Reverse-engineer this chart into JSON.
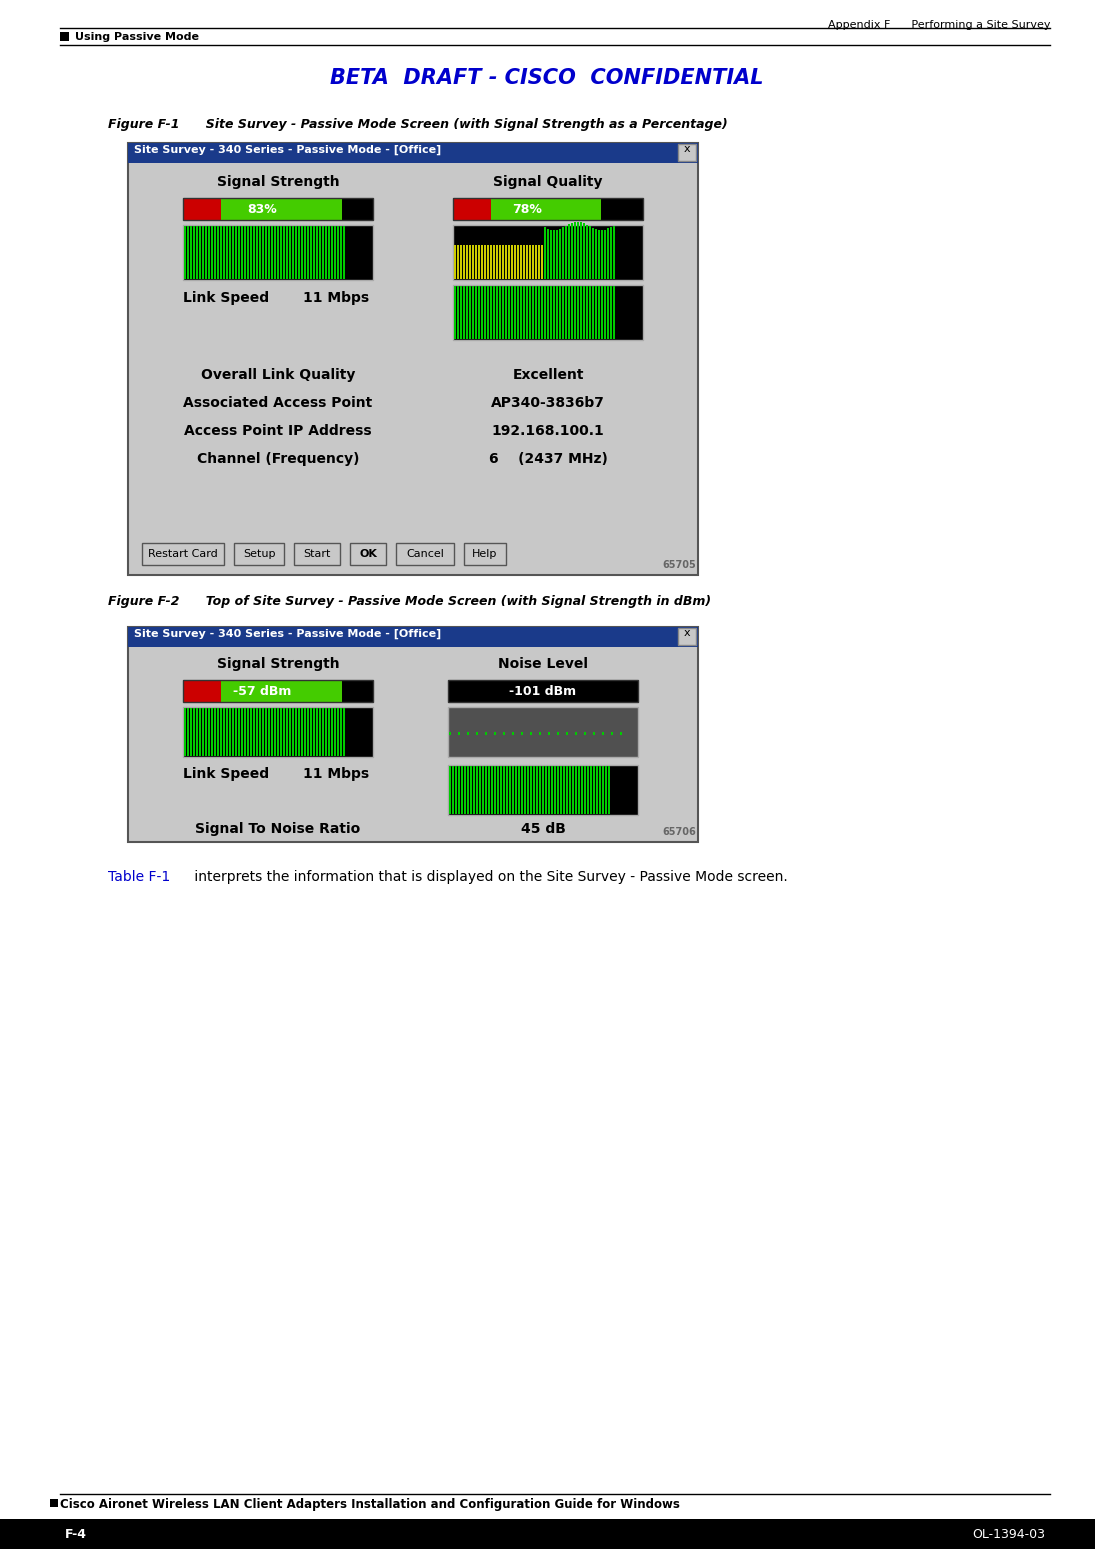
{
  "page_bg": "#ffffff",
  "header_right_text": "Appendix F      Performing a Site Survey",
  "header_left_text": "Using Passive Mode",
  "beta_draft_text": "BETA  DRAFT - CISCO  CONFIDENTIAL",
  "beta_draft_color": "#0000cc",
  "fig1_caption": "Figure F-1      Site Survey - Passive Mode Screen (with Signal Strength as a Percentage)",
  "fig2_caption": "Figure F-2      Top of Site Survey - Passive Mode Screen (with Signal Strength in dBm)",
  "table_f1_color": "#0000cc",
  "footer_left": "F-4",
  "footer_center": "Cisco Aironet Wireless LAN Client Adapters Installation and Configuration Guide for Windows",
  "footer_right": "OL-1394-03",
  "win1_title": "Site Survey - 340 Series - Passive Mode - [Office]",
  "win1_title_bg": "#1a3a8a",
  "win1_bg": "#c8c8c8",
  "win1_sig_strength_label": "Signal Strength",
  "win1_sig_quality_label": "Signal Quality",
  "win1_bar1_text": "83%",
  "win1_bar2_text": "78%",
  "win1_link_speed_label": "Link Speed",
  "win1_link_speed_val": "11 Mbps",
  "win1_overall_link": "Overall Link Quality",
  "win1_overall_val": "Excellent",
  "win1_access_point": "Associated Access Point",
  "win1_access_val": "AP340-3836b7",
  "win1_ip": "Access Point IP Address",
  "win1_ip_val": "192.168.100.1",
  "win1_channel": "Channel (Frequency)",
  "win1_channel_val": "6    (2437 MHz)",
  "win1_btn1": "Restart Card",
  "win1_btn2": "Setup",
  "win1_btn3": "Start",
  "win1_btn4": "OK",
  "win1_btn5": "Cancel",
  "win1_btn6": "Help",
  "win2_title": "Site Survey - 340 Series - Passive Mode - [Office]",
  "win2_title_bg": "#1a3a8a",
  "win2_bg": "#c8c8c8",
  "win2_sig_strength_label": "Signal Strength",
  "win2_noise_label": "Noise Level",
  "win2_bar1_text": "-57 dBm",
  "win2_bar2_text": "-101 dBm",
  "win2_link_speed_label": "Link Speed",
  "win2_link_speed_val": "11 Mbps",
  "win2_snr_label": "Signal To Noise Ratio",
  "win2_snr_val": "45 dB",
  "watermark_1": "65705",
  "watermark_2": "65706",
  "green_bar_color": "#00cc00",
  "yellow_bar_color": "#cccc00",
  "bar_red_color": "#cc0000",
  "bar_green_color": "#44cc00"
}
